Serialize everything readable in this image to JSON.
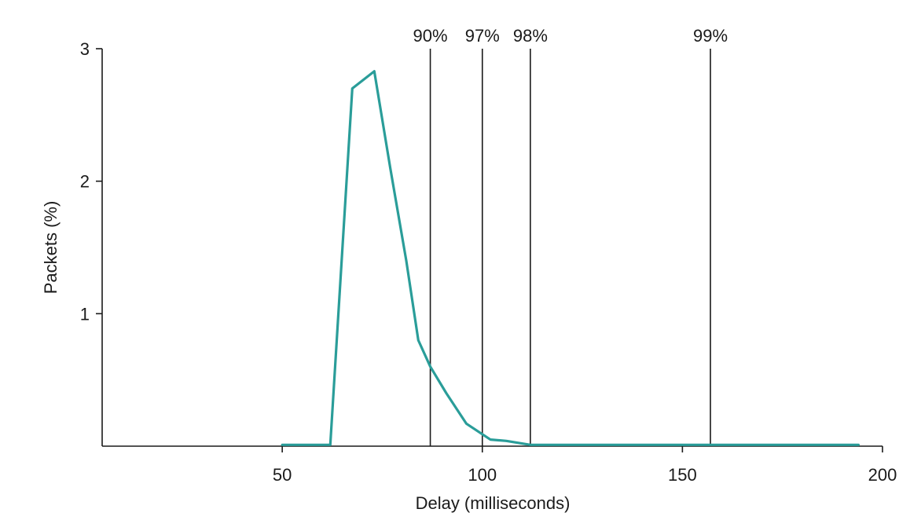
{
  "chart_data": {
    "type": "line",
    "xlabel": "Delay (milliseconds)",
    "ylabel": "Packets (%)",
    "xlim": [
      5,
      200
    ],
    "ylim": [
      0,
      3
    ],
    "x_ticks": [
      50,
      100,
      150,
      200
    ],
    "y_ticks": [
      1,
      2,
      3
    ],
    "grid": false,
    "series": [
      {
        "color": "#2a9d99",
        "points": [
          [
            50,
            0.01
          ],
          [
            62,
            0.01
          ],
          [
            67.5,
            2.7
          ],
          [
            73,
            2.83
          ],
          [
            77,
            2.1
          ],
          [
            81,
            1.4
          ],
          [
            84,
            0.8
          ],
          [
            87,
            0.6
          ],
          [
            91,
            0.4
          ],
          [
            96,
            0.17
          ],
          [
            102,
            0.05
          ],
          [
            106,
            0.04
          ],
          [
            112,
            0.01
          ],
          [
            150,
            0.01
          ],
          [
            194,
            0.01
          ]
        ]
      }
    ],
    "markers": [
      {
        "x": 87,
        "label": "90%"
      },
      {
        "x": 100,
        "label": "97%"
      },
      {
        "x": 112,
        "label": "98%"
      },
      {
        "x": 157,
        "label": "99%"
      }
    ]
  }
}
